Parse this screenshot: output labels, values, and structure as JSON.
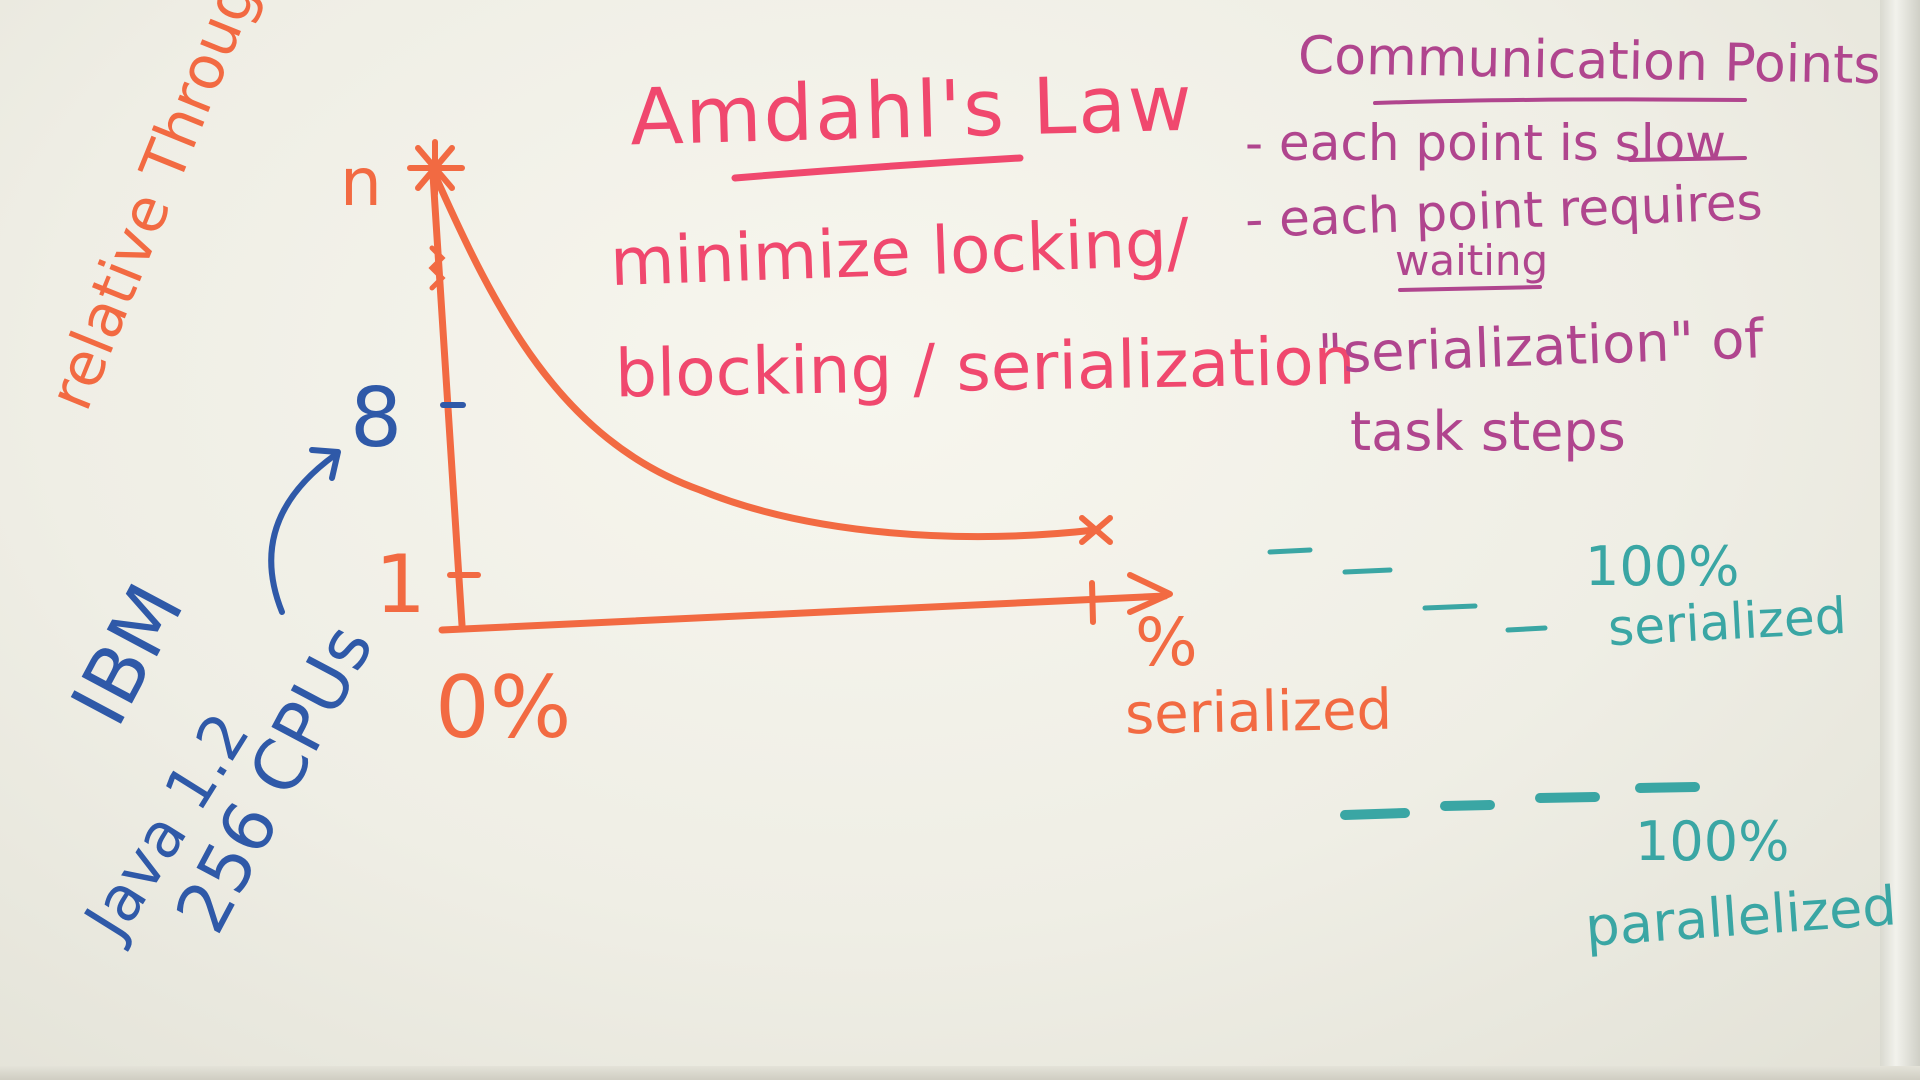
{
  "title": "Amdahl's Law",
  "notes": {
    "line1": "minimize locking/",
    "line2": "blocking / serialization"
  },
  "comm_points": {
    "heading": "Communication Points",
    "bullet1": "- each point is slow",
    "bullet2a": "- each point requires",
    "bullet2b": "waiting",
    "serial_a": "\"serialization\" of",
    "serial_b": "task steps"
  },
  "graph": {
    "y_axis_label": "relative Throughput",
    "y_top_label": "n",
    "y_tick_8": "8",
    "y_tick_1": "1",
    "x_origin_label": "0%",
    "x_axis_label_a": "%",
    "x_axis_label_b": "serialized"
  },
  "ibm_note": {
    "line1": "IBM",
    "line2": "Java 1.2",
    "line3": "256 CPUs"
  },
  "legend": {
    "serialized_pct": "100%",
    "serialized_label": "serialized",
    "parallel_pct": "100%",
    "parallel_label": "parallelized"
  },
  "colors": {
    "red": "#f0486e",
    "orange": "#f26a42",
    "purple": "#b0458e",
    "blue": "#2f59a8",
    "teal": "#3aa6a4"
  }
}
